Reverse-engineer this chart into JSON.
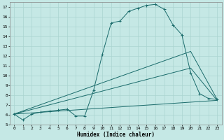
{
  "xlabel": "Humidex (Indice chaleur)",
  "bg_color": "#c5e8e5",
  "line_color": "#1a6b6b",
  "grid_color": "#aad4d0",
  "xlim": [
    -0.5,
    23.5
  ],
  "ylim": [
    5,
    17.5
  ],
  "xticks": [
    0,
    1,
    2,
    3,
    4,
    5,
    6,
    7,
    8,
    9,
    10,
    11,
    12,
    13,
    14,
    15,
    16,
    17,
    18,
    19,
    20,
    21,
    22,
    23
  ],
  "yticks": [
    5,
    6,
    7,
    8,
    9,
    10,
    11,
    12,
    13,
    14,
    15,
    16,
    17
  ],
  "lines": [
    {
      "x": [
        0,
        1,
        2,
        3,
        4,
        5,
        6,
        7,
        8,
        9,
        10,
        11,
        12,
        13,
        14,
        15,
        16,
        17,
        18,
        19,
        20,
        21,
        22,
        23
      ],
      "y": [
        6.1,
        5.5,
        6.1,
        6.3,
        6.4,
        6.5,
        6.6,
        5.9,
        5.9,
        8.5,
        12.2,
        15.4,
        15.6,
        16.6,
        16.9,
        17.2,
        17.3,
        16.8,
        15.2,
        14.2,
        10.3,
        8.2,
        7.7,
        7.6
      ],
      "marker": "+"
    },
    {
      "x": [
        0,
        20,
        23
      ],
      "y": [
        6.1,
        12.5,
        7.6
      ],
      "marker": null
    },
    {
      "x": [
        0,
        20,
        23
      ],
      "y": [
        6.1,
        10.8,
        7.5
      ],
      "marker": null
    },
    {
      "x": [
        0,
        23
      ],
      "y": [
        6.1,
        7.5
      ],
      "marker": null
    }
  ]
}
